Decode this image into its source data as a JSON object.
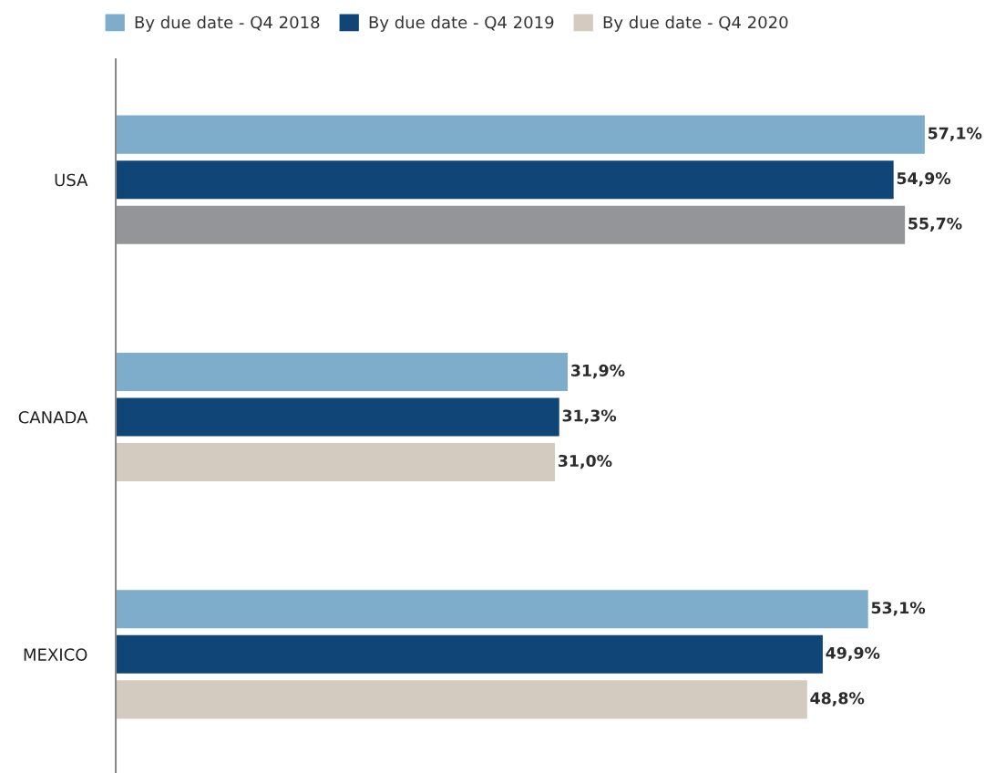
{
  "chart_data": {
    "type": "bar",
    "orientation": "horizontal",
    "categories": [
      "USA",
      "CANADA",
      "MEXICO"
    ],
    "series": [
      {
        "name": "By due date - Q4 2018",
        "color": "#7eadcc",
        "values": [
          57.1,
          31.9,
          53.1
        ],
        "value_labels": [
          "57,1%",
          "31,9%",
          "53,1%"
        ]
      },
      {
        "name": "By due date - Q4 2019",
        "color": "#0f4577",
        "values": [
          54.9,
          31.3,
          49.9
        ],
        "value_labels": [
          "54,9%",
          "31,3%",
          "49,9%"
        ]
      },
      {
        "name": "By due date - Q4 2020",
        "color": "#d3cac0",
        "colors": [
          "#939598",
          "#d3cac0",
          "#d3cac0"
        ],
        "values": [
          55.7,
          31.0,
          48.8
        ],
        "value_labels": [
          "55,7%",
          "31,0%",
          "48,8%"
        ]
      }
    ],
    "legend": "top",
    "grid": false,
    "tick_labels": "y"
  }
}
